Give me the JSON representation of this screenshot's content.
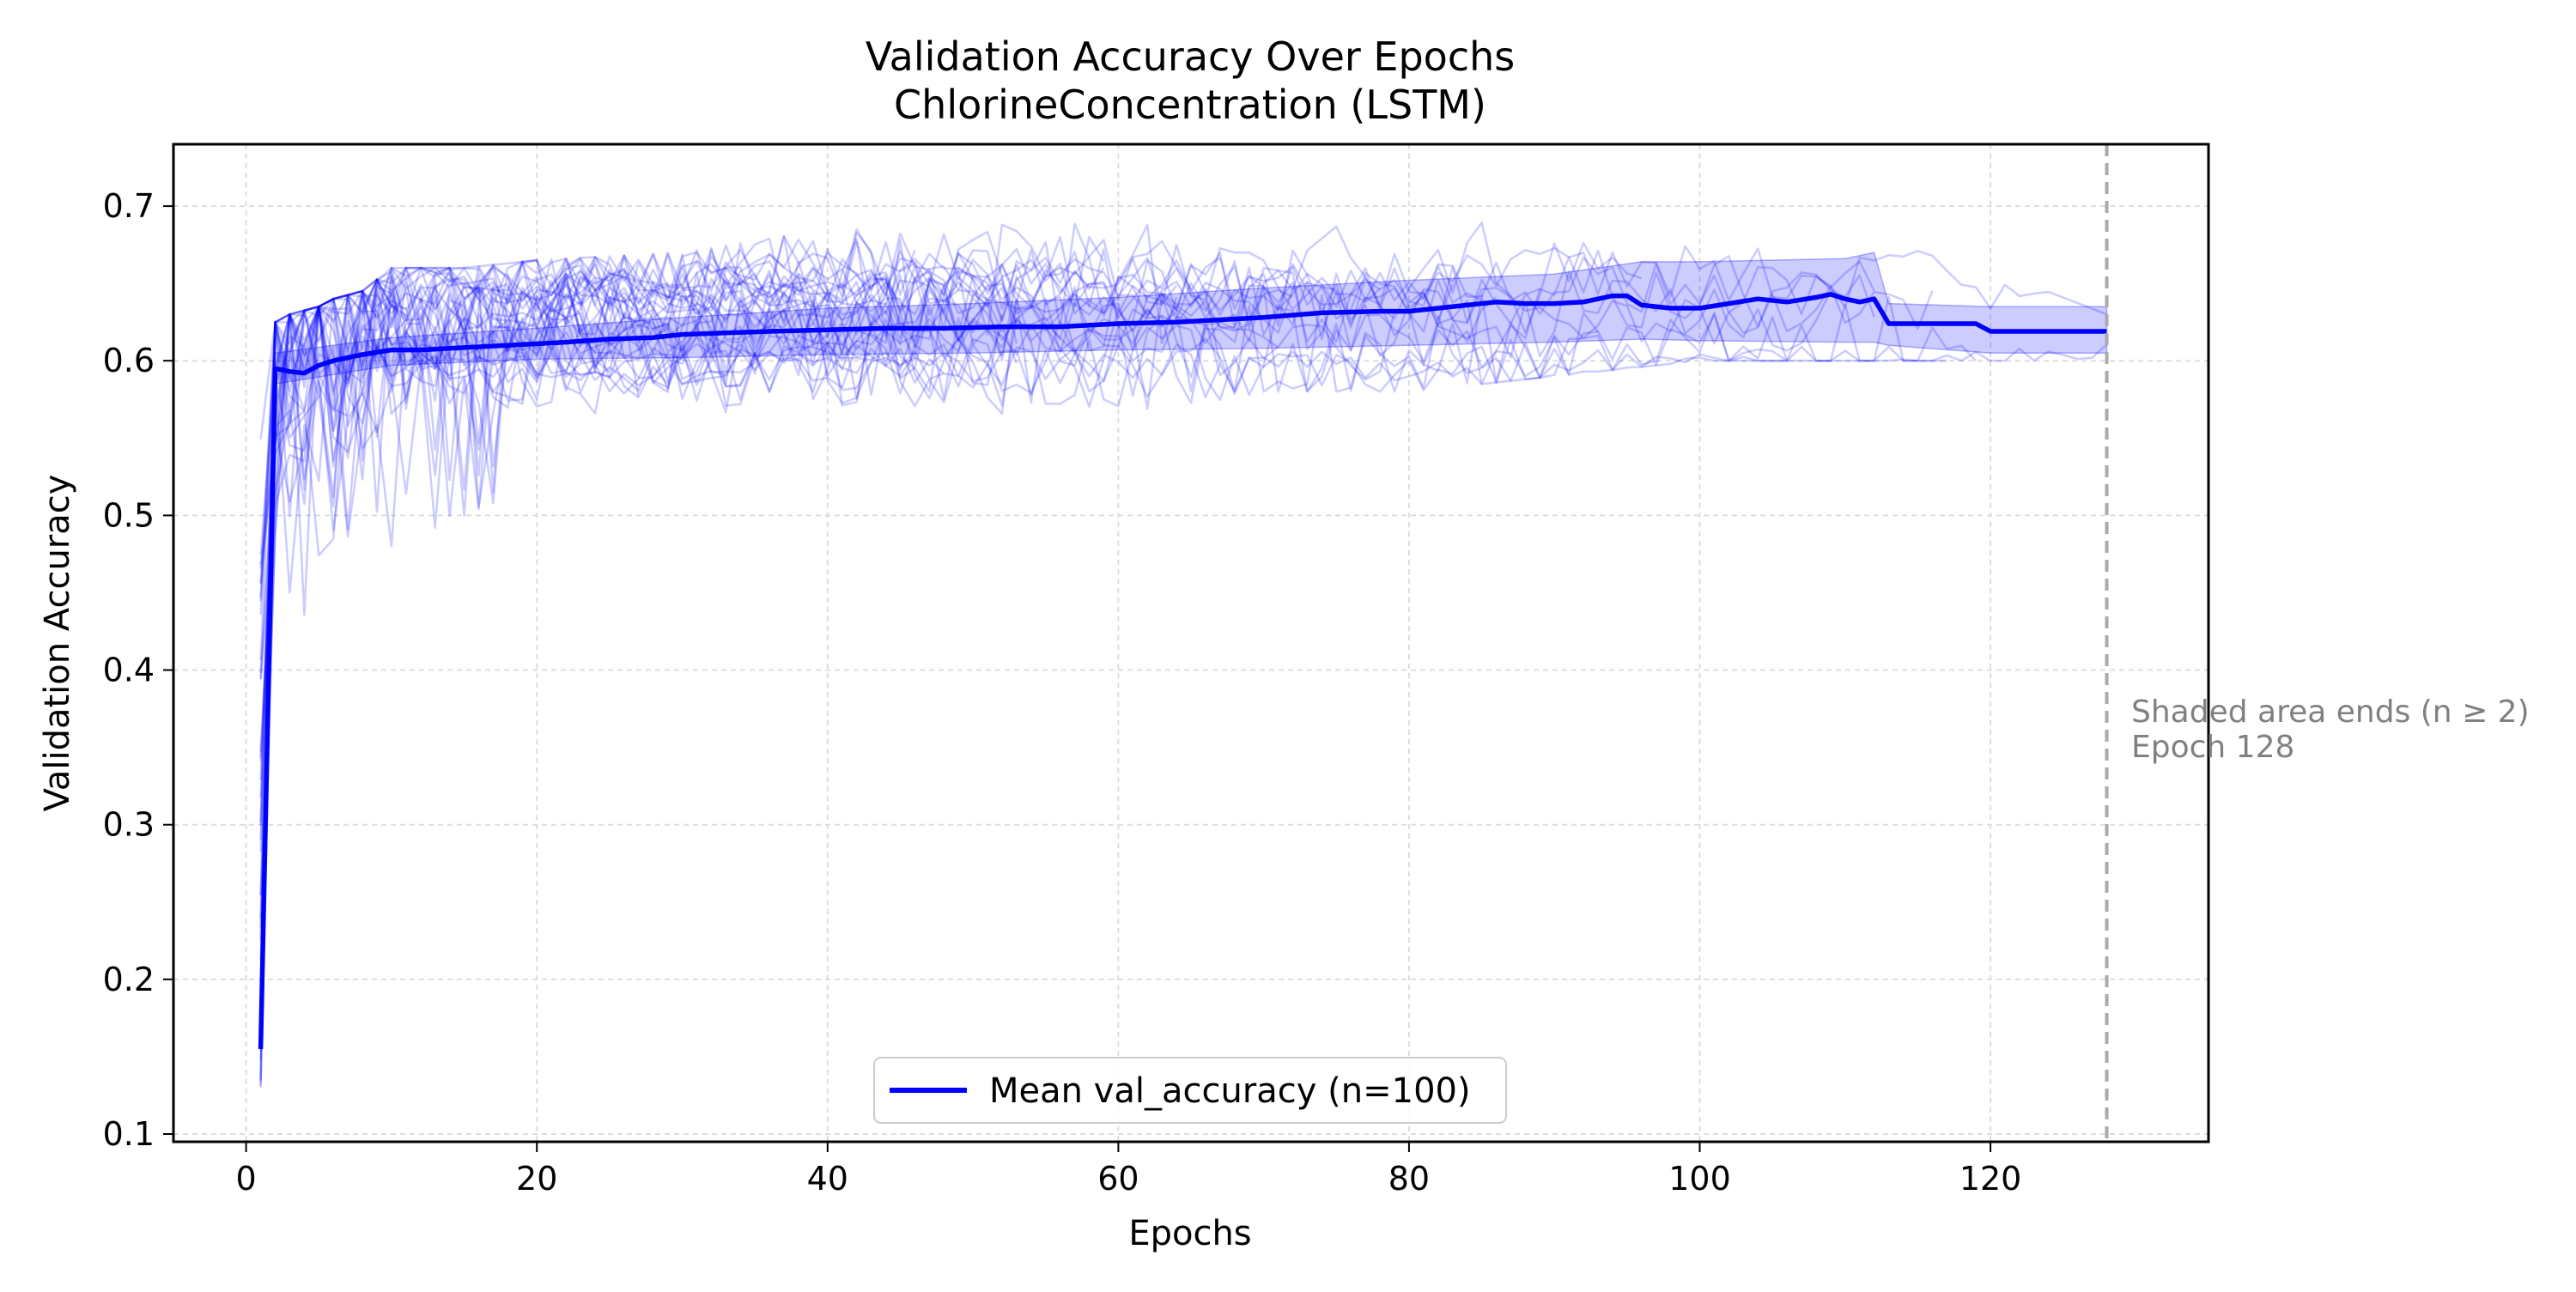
{
  "chart_data": {
    "type": "line",
    "title": "Validation Accuracy Over Epochs",
    "subtitle": "ChlorineConcentration (LSTM)",
    "xlabel": "Epochs",
    "ylabel": "Validation Accuracy",
    "xlim": [
      -5,
      135
    ],
    "ylim": [
      0.095,
      0.74
    ],
    "xticks": [
      0,
      20,
      40,
      60,
      80,
      100,
      120
    ],
    "yticks": [
      0.1,
      0.2,
      0.3,
      0.4,
      0.5,
      0.6,
      0.7
    ],
    "grid": true,
    "legend": {
      "placement": "lower center",
      "entries": [
        "Mean val_accuracy (n=100)"
      ]
    },
    "colors": {
      "series": "#0000ff",
      "band": "#0000ff",
      "vline": "#aaaaaa",
      "annotation": "#808080",
      "grid": "#dddddd"
    },
    "series": [
      {
        "name": "Mean val_accuracy (n=100)",
        "x": [
          1,
          2,
          3,
          4,
          5,
          6,
          8,
          10,
          12,
          14,
          16,
          18,
          20,
          22,
          25,
          28,
          30,
          33,
          36,
          40,
          44,
          48,
          52,
          56,
          60,
          64,
          68,
          70,
          74,
          78,
          80,
          82,
          84,
          86,
          88,
          90,
          92,
          94,
          95,
          96,
          98,
          100,
          102,
          104,
          106,
          108,
          109,
          110,
          111,
          112,
          113,
          116,
          119,
          120,
          124,
          128
        ],
        "y": [
          0.155,
          0.595,
          0.593,
          0.592,
          0.597,
          0.6,
          0.604,
          0.607,
          0.607,
          0.608,
          0.609,
          0.61,
          0.611,
          0.612,
          0.614,
          0.615,
          0.617,
          0.618,
          0.619,
          0.62,
          0.621,
          0.621,
          0.622,
          0.622,
          0.624,
          0.625,
          0.627,
          0.628,
          0.631,
          0.632,
          0.632,
          0.634,
          0.636,
          0.638,
          0.637,
          0.637,
          0.638,
          0.642,
          0.642,
          0.636,
          0.634,
          0.634,
          0.637,
          0.64,
          0.638,
          0.641,
          0.643,
          0.64,
          0.638,
          0.64,
          0.624,
          0.624,
          0.624,
          0.619,
          0.619,
          0.619
        ]
      }
    ],
    "band": {
      "x": [
        2,
        10,
        20,
        30,
        40,
        50,
        60,
        70,
        80,
        90,
        96,
        100,
        110,
        112,
        113,
        120,
        128
      ],
      "lower": [
        0.585,
        0.597,
        0.601,
        0.602,
        0.604,
        0.605,
        0.607,
        0.608,
        0.61,
        0.612,
        0.614,
        0.613,
        0.612,
        0.612,
        0.61,
        0.605,
        0.605
      ],
      "upper": [
        0.605,
        0.615,
        0.621,
        0.628,
        0.634,
        0.637,
        0.641,
        0.647,
        0.652,
        0.656,
        0.664,
        0.664,
        0.666,
        0.67,
        0.637,
        0.635,
        0.635
      ]
    },
    "individual_runs_envelope": {
      "x": [
        1,
        2,
        3,
        5,
        6,
        8,
        10,
        15,
        20,
        30,
        40,
        45,
        50,
        60,
        70,
        80,
        90,
        100,
        112,
        128,
        129
      ],
      "min": [
        0.125,
        0.32,
        0.45,
        0.33,
        0.28,
        0.42,
        0.48,
        0.5,
        0.52,
        0.55,
        0.55,
        0.495,
        0.56,
        0.56,
        0.58,
        0.58,
        0.59,
        0.6,
        0.6,
        0.6,
        0.6
      ],
      "max": [
        0.56,
        0.625,
        0.63,
        0.635,
        0.64,
        0.645,
        0.66,
        0.66,
        0.665,
        0.67,
        0.685,
        0.69,
        0.695,
        0.7,
        0.7,
        0.7,
        0.7,
        0.69,
        0.688,
        0.63,
        0.6
      ]
    },
    "vline": {
      "x": 128
    },
    "annotation": [
      "Shaded area ends (n ≥ 2)",
      "Epoch 128"
    ]
  }
}
